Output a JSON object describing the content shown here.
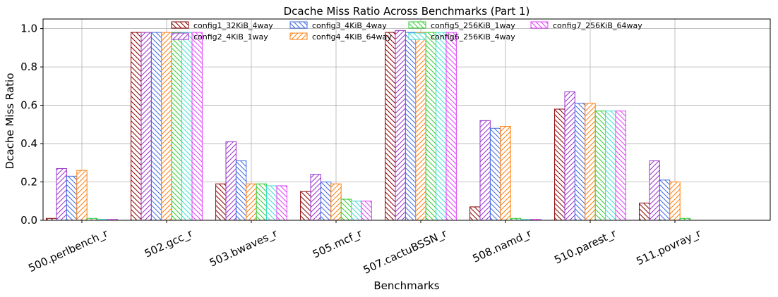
{
  "chart_data": {
    "type": "bar",
    "title": "Dcache Miss Ratio Across Benchmarks (Part 1)",
    "xlabel": "Benchmarks",
    "ylabel": "Dcache Miss Ratio",
    "ylim": [
      0,
      1.05
    ],
    "yticks": [
      "0.0",
      "0.2",
      "0.4",
      "0.6",
      "0.8",
      "1.0"
    ],
    "grid": true,
    "legend_position": "top-center",
    "categories": [
      "500.perlbench_r",
      "502.gcc_r",
      "503.bwaves_r",
      "505.mcf_r",
      "507.cactuBSSN_r",
      "508.namd_r",
      "510.parest_r",
      "511.povray_r"
    ],
    "series": [
      {
        "name": "config1_32KiB_4way",
        "color": "#8b0000",
        "hatch": "back",
        "values": [
          0.01,
          0.98,
          0.19,
          0.15,
          0.98,
          0.07,
          0.58,
          0.09
        ]
      },
      {
        "name": "config2_4KiB_1way",
        "color": "#9932cc",
        "hatch": "forward",
        "values": [
          0.27,
          0.98,
          0.41,
          0.24,
          0.99,
          0.52,
          0.67,
          0.31
        ]
      },
      {
        "name": "config3_4KiB_4way",
        "color": "#4169e1",
        "hatch": "back",
        "values": [
          0.23,
          0.98,
          0.31,
          0.2,
          0.98,
          0.48,
          0.61,
          0.21
        ]
      },
      {
        "name": "config4_4KiB_64way",
        "color": "#ff7f0e",
        "hatch": "forward",
        "values": [
          0.26,
          0.98,
          0.19,
          0.19,
          0.98,
          0.49,
          0.61,
          0.2
        ]
      },
      {
        "name": "config5_256KiB_1way",
        "color": "#32cd32",
        "hatch": "back",
        "values": [
          0.01,
          0.98,
          0.19,
          0.11,
          0.98,
          0.01,
          0.57,
          0.01
        ]
      },
      {
        "name": "config6_256KiB_4way",
        "color": "#40e0d0",
        "hatch": "back",
        "values": [
          0.005,
          0.98,
          0.18,
          0.1,
          0.98,
          0.005,
          0.57,
          0.0
        ]
      },
      {
        "name": "config7_256KiB_64way",
        "color": "#e040fb",
        "hatch": "back",
        "values": [
          0.005,
          0.98,
          0.18,
          0.1,
          0.98,
          0.005,
          0.57,
          0.0
        ]
      }
    ]
  }
}
